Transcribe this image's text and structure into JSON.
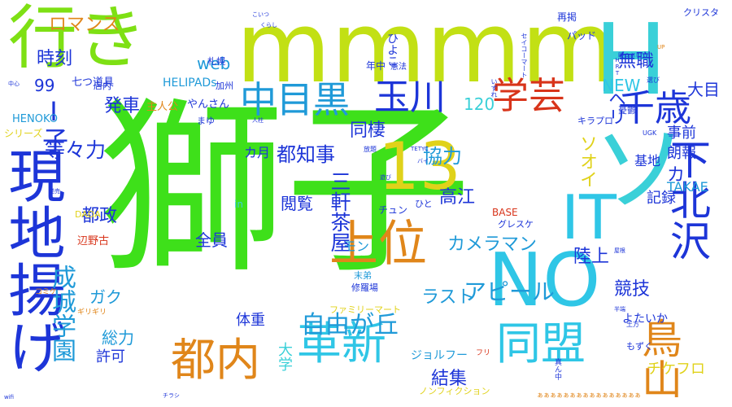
{
  "words": [
    {
      "text": "獅子",
      "color": "#3ee01a",
      "vertical": false
    },
    {
      "text": "mmmm",
      "color": "#c2e014",
      "vertical": false
    },
    {
      "text": "行き",
      "color": "#7ee014",
      "vertical": false
    },
    {
      "text": "Hソ",
      "color": "#3ad0d8",
      "vertical": true
    },
    {
      "text": "13",
      "color": "#e0d21a",
      "vertical": false
    },
    {
      "text": "現地揚げ",
      "color": "#1d35d8",
      "vertical": true
    },
    {
      "text": "上位",
      "color": "#e0861a",
      "vertical": false
    },
    {
      "text": "NO",
      "color": "#2fc6e6",
      "vertical": false
    },
    {
      "text": "IT",
      "color": "#2fc6e6",
      "vertical": false
    },
    {
      "text": "下北沢",
      "color": "#1d35d8",
      "vertical": true
    },
    {
      "text": "中目黒",
      "color": "#1f9ad8",
      "vertical": false
    },
    {
      "text": "玉川",
      "color": "#1d35d8",
      "vertical": false
    },
    {
      "text": "学芸",
      "color": "#d8341a",
      "vertical": false
    },
    {
      "text": "千歳",
      "color": "#1d35d8",
      "vertical": false
    },
    {
      "text": "同盟",
      "color": "#2fc6e6",
      "vertical": false
    },
    {
      "text": "革新",
      "color": "#2fc6e6",
      "vertical": false
    },
    {
      "text": "都内",
      "color": "#e0861a",
      "vertical": false
    },
    {
      "text": "鳥山",
      "color": "#e0861a",
      "vertical": true
    },
    {
      "text": "自由が丘",
      "color": "#1f9ad8",
      "vertical": false
    },
    {
      "text": "成城学園",
      "color": "#1f9ad8",
      "vertical": true
    },
    {
      "text": "ロマンス",
      "color": "#e0861a",
      "vertical": false
    },
    {
      "text": "時刻",
      "color": "#1d35d8",
      "vertical": false
    },
    {
      "text": "99",
      "color": "#1d35d8",
      "vertical": false
    },
    {
      "text": "I子",
      "color": "#1d35d8",
      "vertical": true
    },
    {
      "text": "等々力",
      "color": "#1d35d8",
      "vertical": false
    },
    {
      "text": "web",
      "color": "#1f9ad8",
      "vertical": false
    },
    {
      "text": "120",
      "color": "#3ad0d8",
      "vertical": false
    },
    {
      "text": "NEW",
      "color": "#2fc6e6",
      "vertical": false
    },
    {
      "text": "発車",
      "color": "#1d35d8",
      "vertical": false
    },
    {
      "text": "同棲",
      "color": "#1d35d8",
      "vertical": false
    },
    {
      "text": "都知事",
      "color": "#1d35d8",
      "vertical": false
    },
    {
      "text": "協力",
      "color": "#1f9ad8",
      "vertical": false
    },
    {
      "text": "無職",
      "color": "#1d35d8",
      "vertical": false
    },
    {
      "text": "大目",
      "color": "#1d35d8",
      "vertical": false
    },
    {
      "text": "事前",
      "color": "#1d35d8",
      "vertical": false
    },
    {
      "text": "朗報",
      "color": "#1d35d8",
      "vertical": false
    },
    {
      "text": "ヘリ",
      "color": "#1d35d8",
      "vertical": true
    },
    {
      "text": "ソオイ",
      "color": "#e0d21a",
      "vertical": true
    },
    {
      "text": "カ",
      "color": "#1d35d8",
      "vertical": false
    },
    {
      "text": "基地",
      "color": "#1d35d8",
      "vertical": false
    },
    {
      "text": "TAKAE",
      "color": "#1f9ad8",
      "vertical": false
    },
    {
      "text": "記録",
      "color": "#1d35d8",
      "vertical": false
    },
    {
      "text": "陸上",
      "color": "#1d35d8",
      "vertical": false
    },
    {
      "text": "競技",
      "color": "#1d35d8",
      "vertical": false
    },
    {
      "text": "高江",
      "color": "#1d35d8",
      "vertical": false
    },
    {
      "text": "閲覧",
      "color": "#1d35d8",
      "vertical": false
    },
    {
      "text": "三軒茶屋",
      "color": "#1d35d8",
      "vertical": true
    },
    {
      "text": "カメラマン",
      "color": "#1f9ad8",
      "vertical": false
    },
    {
      "text": "アピール",
      "color": "#1f9ad8",
      "vertical": false
    },
    {
      "text": "ラスト",
      "color": "#1f9ad8",
      "vertical": false
    },
    {
      "text": "モン",
      "color": "#1f9ad8",
      "vertical": false
    },
    {
      "text": "全員",
      "color": "#1d35d8",
      "vertical": false
    },
    {
      "text": "都政",
      "color": "#1d35d8",
      "vertical": false
    },
    {
      "text": "ガク",
      "color": "#1f9ad8",
      "vertical": false
    },
    {
      "text": "カ月",
      "color": "#1d35d8",
      "vertical": false
    },
    {
      "text": "体重",
      "color": "#1d35d8",
      "vertical": false
    },
    {
      "text": "総力",
      "color": "#1f9ad8",
      "vertical": false
    },
    {
      "text": "許可",
      "color": "#1d35d8",
      "vertical": false
    },
    {
      "text": "大学",
      "color": "#3ad0d8",
      "vertical": true
    },
    {
      "text": "結集",
      "color": "#1d35d8",
      "vertical": false
    },
    {
      "text": "チケフロ",
      "color": "#e0d21a",
      "vertical": false
    },
    {
      "text": "ジョルフー",
      "color": "#1f9ad8",
      "vertical": false
    },
    {
      "text": "よたいか",
      "color": "#1d35d8",
      "vertical": false
    },
    {
      "text": "ファミリーマート",
      "color": "#e0d21a",
      "vertical": false
    },
    {
      "text": "修羅場",
      "color": "#1d35d8",
      "vertical": false
    },
    {
      "text": "末弟",
      "color": "#1f9ad8",
      "vertical": false
    },
    {
      "text": "七つ道具",
      "color": "#1d35d8",
      "vertical": false
    },
    {
      "text": "店内",
      "color": "#1d35d8",
      "vertical": false
    },
    {
      "text": "主人公",
      "color": "#e0861a",
      "vertical": false
    },
    {
      "text": "やんさん",
      "color": "#1d35d8",
      "vertical": false
    },
    {
      "text": "HELIPADs",
      "color": "#1f9ad8",
      "vertical": false
    },
    {
      "text": "HENOKO",
      "color": "#1f9ad8",
      "vertical": false
    },
    {
      "text": "シリーズ",
      "color": "#e0d21a",
      "vertical": false
    },
    {
      "text": "まゆ",
      "color": "#1d35d8",
      "vertical": false
    },
    {
      "text": "キラプロ",
      "color": "#1d35d8",
      "vertical": false
    },
    {
      "text": "憂鬱",
      "color": "#1d35d8",
      "vertical": false
    },
    {
      "text": "BASE",
      "color": "#d8341a",
      "vertical": false
    },
    {
      "text": "グレスケ",
      "color": "#1d35d8",
      "vertical": false
    },
    {
      "text": "チュン",
      "color": "#1d35d8",
      "vertical": false
    },
    {
      "text": "ひと",
      "color": "#1d35d8",
      "vertical": false
    },
    {
      "text": "辺野古",
      "color": "#d8341a",
      "vertical": false
    },
    {
      "text": "DADA",
      "color": "#e0d21a",
      "vertical": false
    },
    {
      "text": "in",
      "color": "#3ad0d8",
      "vertical": false
    },
    {
      "text": "札幌",
      "color": "#1d35d8",
      "vertical": false
    },
    {
      "text": "加州",
      "color": "#1d35d8",
      "vertical": false
    },
    {
      "text": "年中",
      "color": "#1d35d8",
      "vertical": false
    },
    {
      "text": "憲法",
      "color": "#1d35d8",
      "vertical": false
    },
    {
      "text": "再掲",
      "color": "#1d35d8",
      "vertical": false
    },
    {
      "text": "パッド",
      "color": "#1d35d8",
      "vertical": false
    },
    {
      "text": "クリスタ",
      "color": "#1d35d8",
      "vertical": false
    },
    {
      "text": "ひよこ",
      "color": "#1d35d8",
      "vertical": true
    },
    {
      "text": "セイコーマート",
      "color": "#1d35d8",
      "vertical": true
    },
    {
      "text": "こいつ",
      "color": "#1d35d8",
      "vertical": false
    },
    {
      "text": "くらし",
      "color": "#1d35d8",
      "vertical": false
    },
    {
      "text": "暇つぶし",
      "color": "#1d35d8",
      "vertical": false
    },
    {
      "text": "UP",
      "color": "#e0861a",
      "vertical": false
    },
    {
      "text": "HRT",
      "color": "#1d35d8",
      "vertical": true
    },
    {
      "text": "いずれ",
      "color": "#1d35d8",
      "vertical": true
    },
    {
      "text": "選び",
      "color": "#1d35d8",
      "vertical": false
    },
    {
      "text": "UGK",
      "color": "#1d35d8",
      "vertical": false
    },
    {
      "text": "放題",
      "color": "#1d35d8",
      "vertical": false
    },
    {
      "text": "TETYC",
      "color": "#1d35d8",
      "vertical": false
    },
    {
      "text": "遊び",
      "color": "#1d35d8",
      "vertical": false
    },
    {
      "text": "バイ",
      "color": "#1d35d8",
      "vertical": false
    },
    {
      "text": "人柱",
      "color": "#1d35d8",
      "vertical": false
    },
    {
      "text": "中心",
      "color": "#1d35d8",
      "vertical": false
    },
    {
      "text": "発売",
      "color": "#1d35d8",
      "vertical": false
    },
    {
      "text": "コミケ",
      "color": "#e0861a",
      "vertical": false
    },
    {
      "text": "ギリギリ",
      "color": "#e0861a",
      "vertical": false
    },
    {
      "text": "半端",
      "color": "#1d35d8",
      "vertical": false
    },
    {
      "text": "屋根",
      "color": "#1d35d8",
      "vertical": false
    },
    {
      "text": "土方",
      "color": "#1d35d8",
      "vertical": false
    },
    {
      "text": "もずく",
      "color": "#1d35d8",
      "vertical": false
    },
    {
      "text": "フリ",
      "color": "#d8341a",
      "vertical": false
    },
    {
      "text": "ノンフィクション",
      "color": "#e0d21a",
      "vertical": false
    },
    {
      "text": "真ん中",
      "color": "#1d35d8",
      "vertical": true
    },
    {
      "text": "チラシ",
      "color": "#1d35d8",
      "vertical": false
    },
    {
      "text": "wifi",
      "color": "#1d35d8",
      "vertical": false
    },
    {
      "text": "ぁぁぁぁぁぁぁぁぁぁぁぁぁぁぁぁ",
      "color": "#e0861a",
      "vertical": false
    }
  ]
}
